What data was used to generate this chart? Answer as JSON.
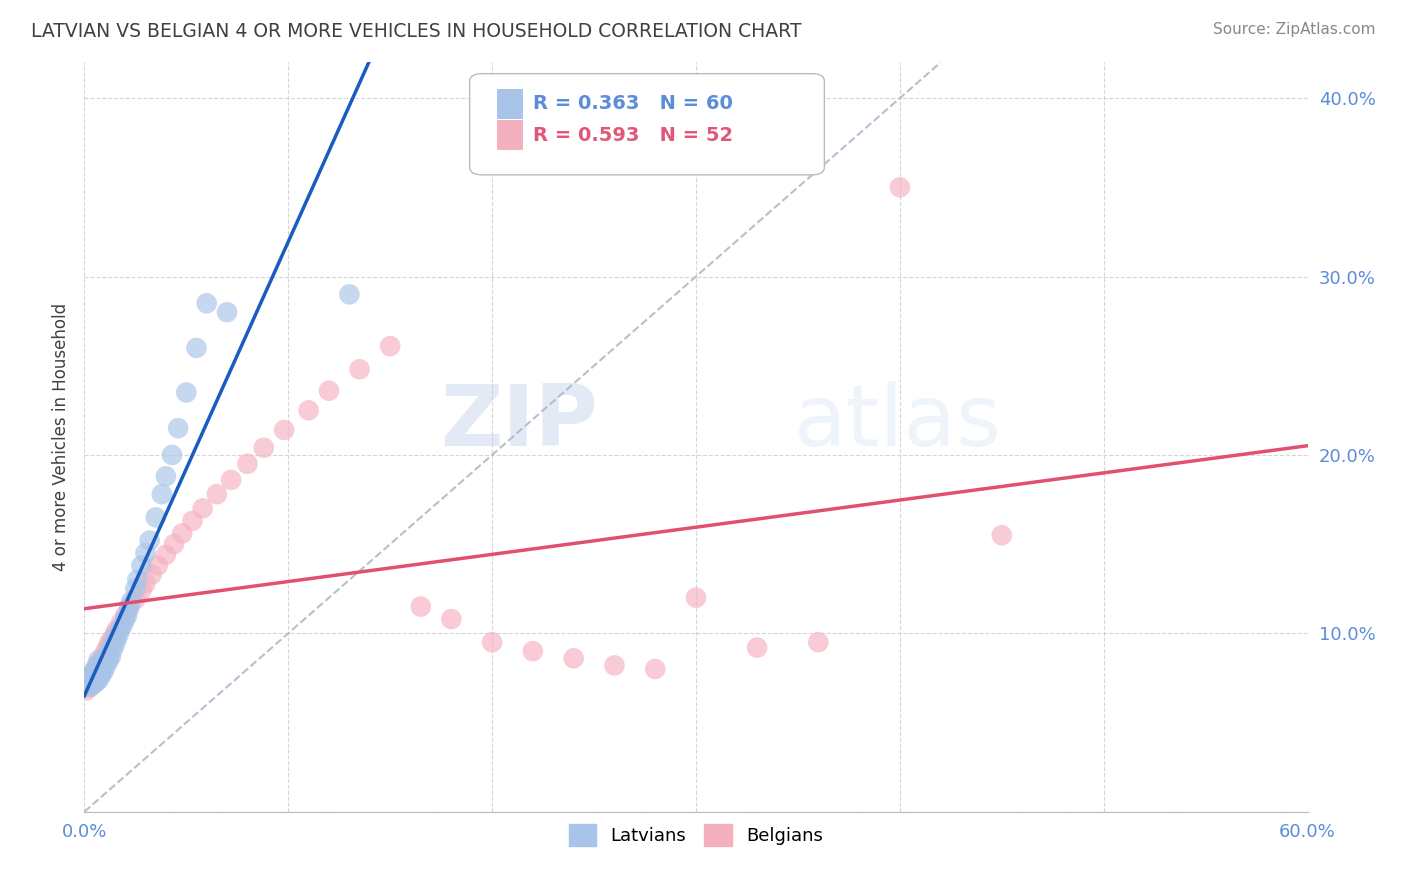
{
  "title": "LATVIAN VS BELGIAN 4 OR MORE VEHICLES IN HOUSEHOLD CORRELATION CHART",
  "source": "Source: ZipAtlas.com",
  "ylabel": "4 or more Vehicles in Household",
  "xlim": [
    0.0,
    0.6
  ],
  "ylim": [
    0.0,
    0.42
  ],
  "xticks": [
    0.0,
    0.1,
    0.2,
    0.3,
    0.4,
    0.5,
    0.6
  ],
  "yticks": [
    0.0,
    0.1,
    0.2,
    0.3,
    0.4
  ],
  "xticklabels": [
    "0.0%",
    "",
    "",
    "",
    "",
    "",
    "60.0%"
  ],
  "yticklabels_right": [
    "",
    "10.0%",
    "20.0%",
    "30.0%",
    "40.0%"
  ],
  "latvian_color": "#a8c4e8",
  "belgian_color": "#f5b0c0",
  "latvian_line_color": "#1a5cbf",
  "belgian_line_color": "#e05070",
  "legend_R_latvian": "R = 0.363",
  "legend_N_latvian": "N = 60",
  "legend_R_belgian": "R = 0.593",
  "legend_N_belgian": "N = 52",
  "watermark_zip": "ZIP",
  "watermark_atlas": "atlas",
  "background_color": "#ffffff",
  "grid_color": "#cccccc",
  "title_color": "#404040",
  "tick_color": "#5b8dd9",
  "latvians_label": "Latvians",
  "belgians_label": "Belgians",
  "latvian_x": [
    0.002,
    0.002,
    0.003,
    0.003,
    0.003,
    0.003,
    0.004,
    0.004,
    0.004,
    0.004,
    0.005,
    0.005,
    0.005,
    0.005,
    0.006,
    0.006,
    0.006,
    0.006,
    0.007,
    0.007,
    0.007,
    0.007,
    0.008,
    0.008,
    0.008,
    0.009,
    0.009,
    0.01,
    0.01,
    0.011,
    0.012,
    0.012,
    0.013,
    0.013,
    0.014,
    0.015,
    0.015,
    0.016,
    0.017,
    0.018,
    0.019,
    0.02,
    0.021,
    0.022,
    0.023,
    0.025,
    0.026,
    0.028,
    0.03,
    0.032,
    0.035,
    0.038,
    0.04,
    0.043,
    0.046,
    0.05,
    0.055,
    0.06,
    0.07,
    0.13
  ],
  "latvian_y": [
    0.072,
    0.075,
    0.07,
    0.072,
    0.074,
    0.076,
    0.071,
    0.073,
    0.075,
    0.078,
    0.072,
    0.074,
    0.076,
    0.079,
    0.073,
    0.076,
    0.078,
    0.082,
    0.074,
    0.077,
    0.08,
    0.085,
    0.076,
    0.079,
    0.083,
    0.078,
    0.082,
    0.08,
    0.086,
    0.083,
    0.085,
    0.09,
    0.087,
    0.093,
    0.091,
    0.094,
    0.098,
    0.097,
    0.1,
    0.103,
    0.105,
    0.108,
    0.11,
    0.115,
    0.118,
    0.125,
    0.13,
    0.138,
    0.145,
    0.152,
    0.165,
    0.178,
    0.188,
    0.2,
    0.215,
    0.235,
    0.26,
    0.285,
    0.28,
    0.29
  ],
  "belgian_x": [
    0.001,
    0.002,
    0.002,
    0.003,
    0.003,
    0.004,
    0.005,
    0.005,
    0.006,
    0.007,
    0.008,
    0.009,
    0.01,
    0.011,
    0.012,
    0.013,
    0.015,
    0.016,
    0.018,
    0.02,
    0.022,
    0.025,
    0.028,
    0.03,
    0.033,
    0.036,
    0.04,
    0.044,
    0.048,
    0.053,
    0.058,
    0.065,
    0.072,
    0.08,
    0.088,
    0.098,
    0.11,
    0.12,
    0.135,
    0.15,
    0.165,
    0.18,
    0.2,
    0.22,
    0.24,
    0.26,
    0.28,
    0.3,
    0.33,
    0.36,
    0.4,
    0.45
  ],
  "belgian_y": [
    0.068,
    0.07,
    0.072,
    0.073,
    0.076,
    0.074,
    0.076,
    0.079,
    0.08,
    0.082,
    0.084,
    0.086,
    0.089,
    0.091,
    0.094,
    0.096,
    0.1,
    0.102,
    0.106,
    0.11,
    0.114,
    0.119,
    0.124,
    0.128,
    0.133,
    0.138,
    0.144,
    0.15,
    0.156,
    0.163,
    0.17,
    0.178,
    0.186,
    0.195,
    0.204,
    0.214,
    0.225,
    0.236,
    0.248,
    0.261,
    0.115,
    0.108,
    0.095,
    0.09,
    0.086,
    0.082,
    0.08,
    0.12,
    0.092,
    0.095,
    0.35,
    0.155
  ],
  "diag_line_x": [
    0.0,
    0.42
  ],
  "diag_line_y": [
    0.0,
    0.42
  ]
}
